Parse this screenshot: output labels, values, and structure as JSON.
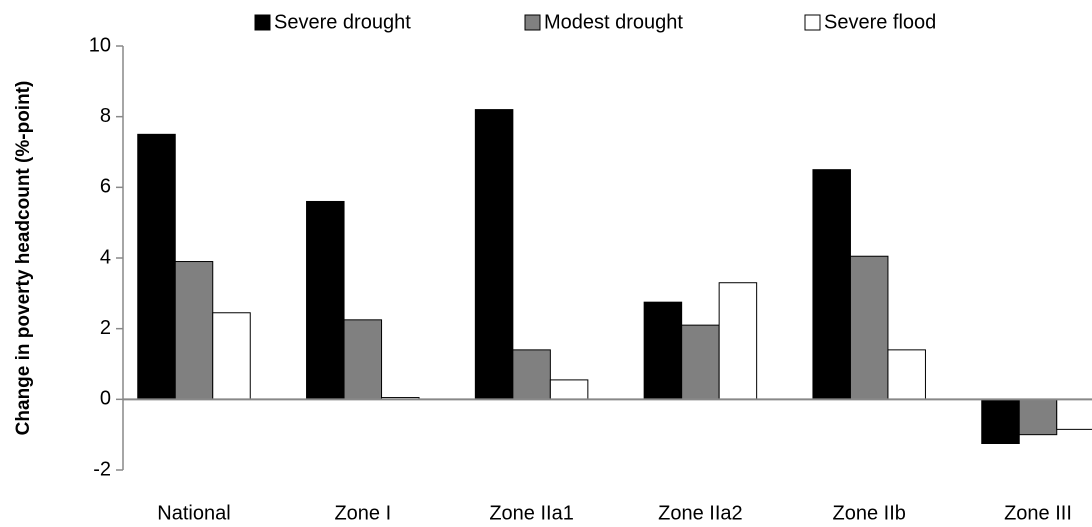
{
  "chart_data": {
    "type": "bar",
    "y_label": "Change in poverty headcount  (%-point)",
    "categories": [
      "National",
      "Zone I",
      "Zone IIa1",
      "Zone IIa2",
      "Zone IIb",
      "Zone III"
    ],
    "series": [
      {
        "name": "Severe drought",
        "color": "#000000",
        "values": [
          7.5,
          5.6,
          8.2,
          2.75,
          6.5,
          -1.25
        ]
      },
      {
        "name": "Modest drought",
        "color": "#808080",
        "values": [
          3.9,
          2.25,
          1.4,
          2.1,
          4.05,
          -1.0
        ]
      },
      {
        "name": "Severe flood",
        "color": "#ffffff",
        "values": [
          2.45,
          0.05,
          0.55,
          3.3,
          1.4,
          -0.85
        ]
      }
    ],
    "ylim": [
      -2,
      10
    ],
    "yticks": [
      -2,
      0,
      2,
      4,
      6,
      8,
      10
    ],
    "legend": "top"
  }
}
